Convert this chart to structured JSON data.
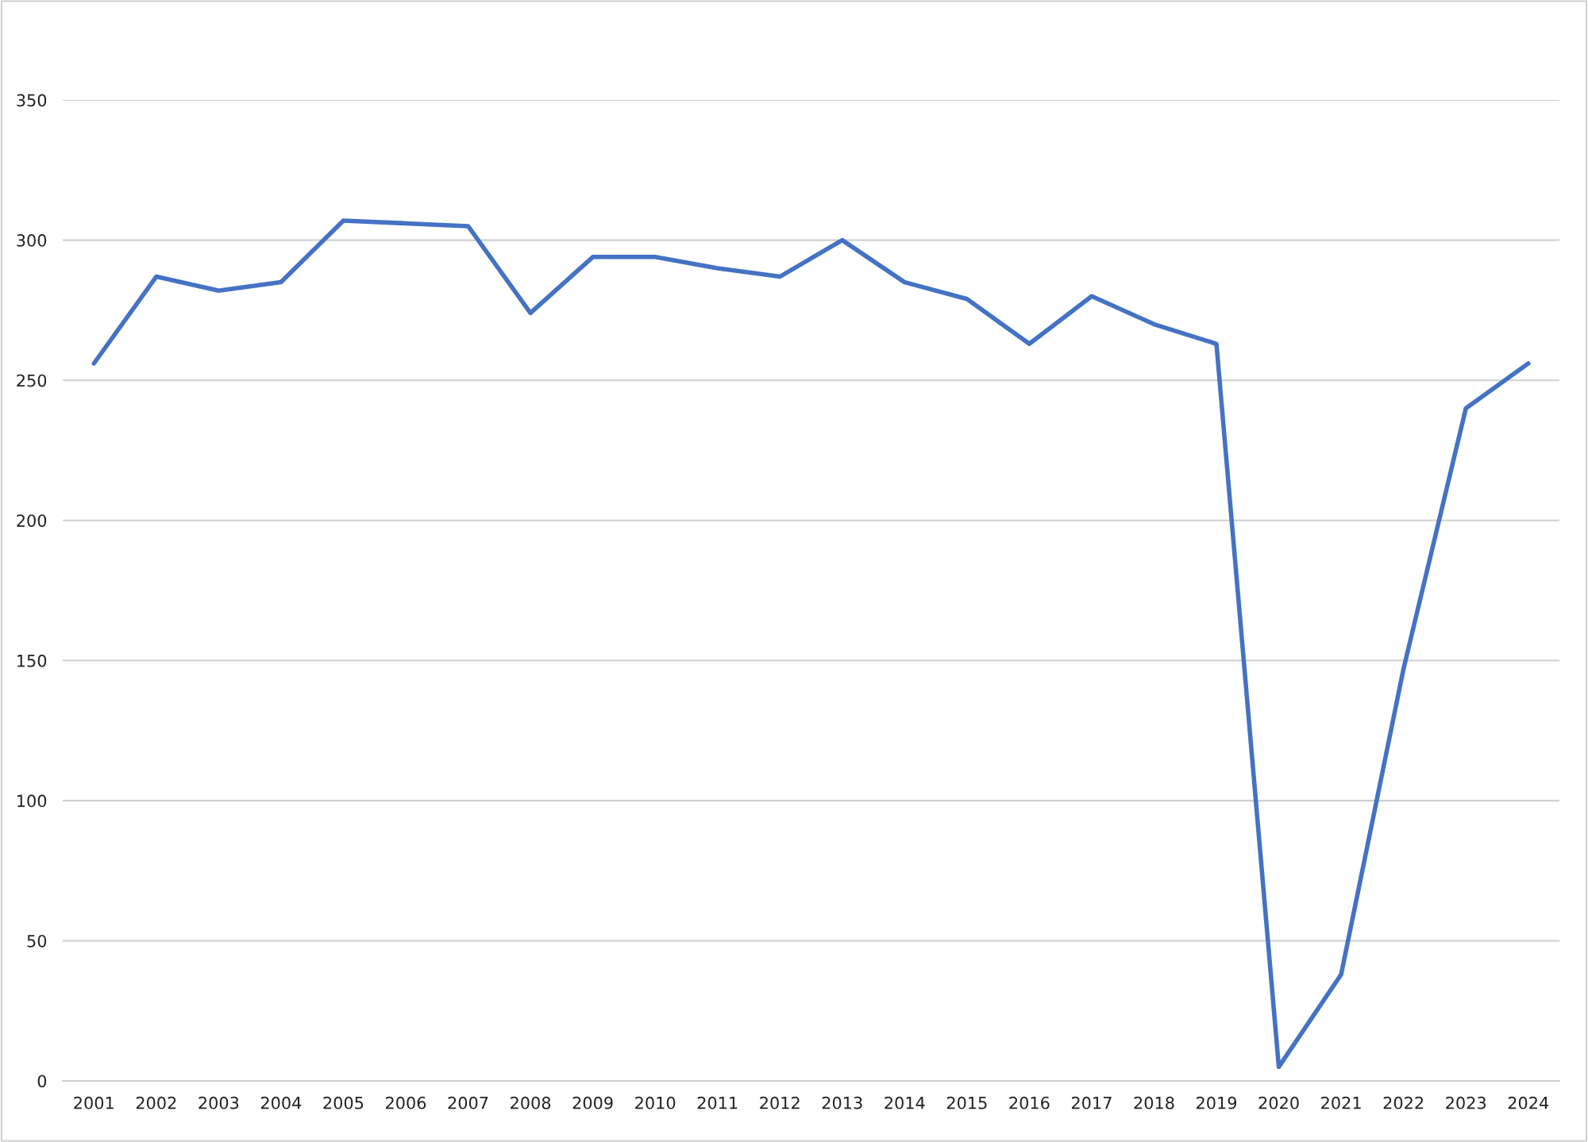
{
  "chart_data": {
    "type": "line",
    "categories": [
      "2001",
      "2002",
      "2003",
      "2004",
      "2005",
      "2006",
      "2007",
      "2008",
      "2009",
      "2010",
      "2011",
      "2012",
      "2013",
      "2014",
      "2015",
      "2016",
      "2017",
      "2018",
      "2019",
      "2020",
      "2021",
      "2022",
      "2023",
      "2024"
    ],
    "series": [
      {
        "color": "#4472c4",
        "values": [
          256,
          287,
          282,
          285,
          307,
          306,
          305,
          274,
          294,
          294,
          290,
          287,
          300,
          285,
          279,
          263,
          280,
          270,
          263,
          5,
          38,
          147,
          240,
          256
        ]
      }
    ],
    "ylim": [
      0,
      350
    ],
    "yticks": [
      0,
      50,
      100,
      150,
      200,
      250,
      300,
      350
    ],
    "grid": "y",
    "marker": "none",
    "line_style": "solid"
  }
}
